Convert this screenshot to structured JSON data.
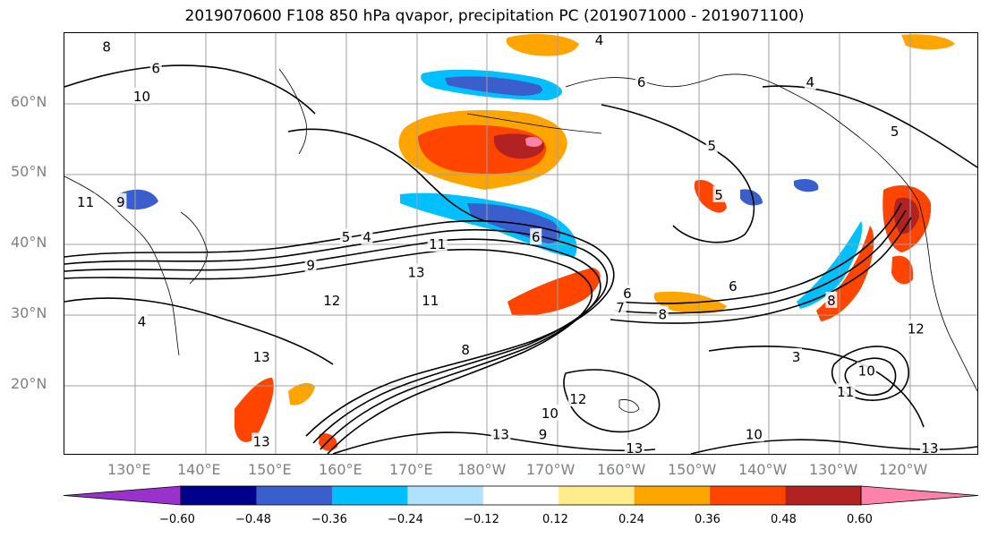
{
  "title": "2019070600 F108 850 hPa qvapor, precipitation PC (2019071000 - 2019071100)",
  "lat_ticks": [
    "60°N",
    "50°N",
    "40°N",
    "30°N",
    "20°N"
  ],
  "lon_ticks": [
    "130°E",
    "140°E",
    "150°E",
    "160°E",
    "170°E",
    "180°W",
    "170°W",
    "160°W",
    "150°W",
    "140°W",
    "130°W",
    "120°W"
  ],
  "colorbar": {
    "tick_labels": [
      "−0.60",
      "−0.48",
      "−0.36",
      "−0.24",
      "−0.12",
      "0.12",
      "0.24",
      "0.36",
      "0.48",
      "0.60"
    ],
    "colors": [
      "#9932cc",
      "#00008b",
      "#3a5fcd",
      "#00bfff",
      "#b0e2ff",
      "#ffffff",
      "#ffec8b",
      "#ffa500",
      "#ff4500",
      "#b22222",
      "#ff82ab"
    ]
  },
  "contour_labels": [
    {
      "text": "8",
      "lon": 126,
      "lat": 68
    },
    {
      "text": "6",
      "lon": 133,
      "lat": 65
    },
    {
      "text": "10",
      "lon": 131,
      "lat": 61
    },
    {
      "text": "11",
      "lon": 123,
      "lat": 46
    },
    {
      "text": "9",
      "lon": 128,
      "lat": 46
    },
    {
      "text": "5",
      "lon": 160,
      "lat": 41
    },
    {
      "text": "4",
      "lon": 163,
      "lat": 41
    },
    {
      "text": "9",
      "lon": 155,
      "lat": 37
    },
    {
      "text": "11",
      "lon": 173,
      "lat": 40
    },
    {
      "text": "13",
      "lon": 170,
      "lat": 36
    },
    {
      "text": "12",
      "lon": 158,
      "lat": 32
    },
    {
      "text": "11",
      "lon": 172,
      "lat": 32
    },
    {
      "text": "4",
      "lon": 131,
      "lat": 29
    },
    {
      "text": "13",
      "lon": 148,
      "lat": 24
    },
    {
      "text": "8",
      "lon": 177,
      "lat": 25
    },
    {
      "text": "6",
      "lon": 187,
      "lat": 41
    },
    {
      "text": "6",
      "lon": 200,
      "lat": 33
    },
    {
      "text": "6",
      "lon": 215,
      "lat": 34
    },
    {
      "text": "7",
      "lon": 199,
      "lat": 31
    },
    {
      "text": "8",
      "lon": 205,
      "lat": 30
    },
    {
      "text": "4",
      "lon": 196,
      "lat": 69
    },
    {
      "text": "6",
      "lon": 202,
      "lat": 63
    },
    {
      "text": "5",
      "lon": 212,
      "lat": 54
    },
    {
      "text": "5",
      "lon": 213,
      "lat": 47
    },
    {
      "text": "4",
      "lon": 226,
      "lat": 63
    },
    {
      "text": "5",
      "lon": 238,
      "lat": 56
    },
    {
      "text": "12",
      "lon": 193,
      "lat": 18
    },
    {
      "text": "10",
      "lon": 189,
      "lat": 16
    },
    {
      "text": "9",
      "lon": 188,
      "lat": 13
    },
    {
      "text": "13",
      "lon": 182,
      "lat": 13
    },
    {
      "text": "13",
      "lon": 148,
      "lat": 12
    },
    {
      "text": "10",
      "lon": 218,
      "lat": 13
    },
    {
      "text": "13",
      "lon": 201,
      "lat": 11
    },
    {
      "text": "3",
      "lon": 224,
      "lat": 24
    },
    {
      "text": "10",
      "lon": 234,
      "lat": 22
    },
    {
      "text": "11",
      "lon": 231,
      "lat": 19
    },
    {
      "text": "13",
      "lon": 243,
      "lat": 11
    },
    {
      "text": "8",
      "lon": 229,
      "lat": 32
    },
    {
      "text": "12",
      "lon": 241,
      "lat": 28
    }
  ]
}
